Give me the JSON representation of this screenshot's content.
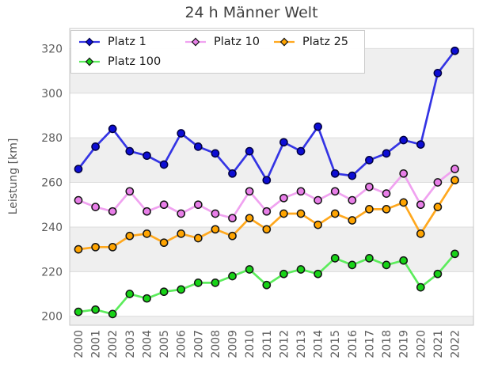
{
  "chart_data": {
    "type": "line",
    "title": "24 h Männer Welt",
    "xlabel": "",
    "ylabel": "Leistung [km]",
    "categories": [
      "2000",
      "2001",
      "2002",
      "2003",
      "2004",
      "2005",
      "2006",
      "2007",
      "2008",
      "2009",
      "2010",
      "2011",
      "2012",
      "2013",
      "2014",
      "2015",
      "2016",
      "2017",
      "2018",
      "2019",
      "2020",
      "2021",
      "2022"
    ],
    "yticks": [
      200,
      220,
      240,
      260,
      280,
      300,
      320
    ],
    "ylim": [
      196,
      329
    ],
    "grid": true,
    "legend_position": "upper-left",
    "legend_columns": 3,
    "band_color": "#efefef",
    "grid_color": "#dcdcdc",
    "spine_color": "#c6c6c6",
    "tick_color": "#5c5c5c",
    "series": [
      {
        "name": "Platz 1",
        "line_color": "#3434e4",
        "marker_color": "#0d0dd4",
        "edge_color": "#000040",
        "values": [
          266,
          276,
          284,
          274,
          272,
          268,
          282,
          276,
          273,
          264,
          274,
          261,
          278,
          274,
          285,
          264,
          263,
          270,
          273,
          279,
          277,
          309,
          319
        ]
      },
      {
        "name": "Platz 10",
        "line_color": "#f0a2f0",
        "marker_color": "#e87ee8",
        "edge_color": "#141414",
        "values": [
          252,
          249,
          247,
          256,
          247,
          250,
          246,
          250,
          246,
          244,
          256,
          247,
          253,
          256,
          252,
          256,
          252,
          258,
          255,
          264,
          250,
          260,
          266
        ]
      },
      {
        "name": "Platz 25",
        "line_color": "#ffa81e",
        "marker_color": "#ffa400",
        "edge_color": "#141414",
        "values": [
          230,
          231,
          231,
          236,
          237,
          233,
          237,
          235,
          239,
          236,
          244,
          239,
          246,
          246,
          241,
          246,
          243,
          248,
          248,
          251,
          237,
          249,
          261
        ]
      },
      {
        "name": "Platz 100",
        "line_color": "#5cec5c",
        "marker_color": "#17d317",
        "edge_color": "#141414",
        "values": [
          202,
          203,
          201,
          210,
          208,
          211,
          212,
          215,
          215,
          218,
          221,
          214,
          219,
          221,
          219,
          226,
          223,
          226,
          223,
          225,
          213,
          219,
          228
        ]
      }
    ]
  }
}
